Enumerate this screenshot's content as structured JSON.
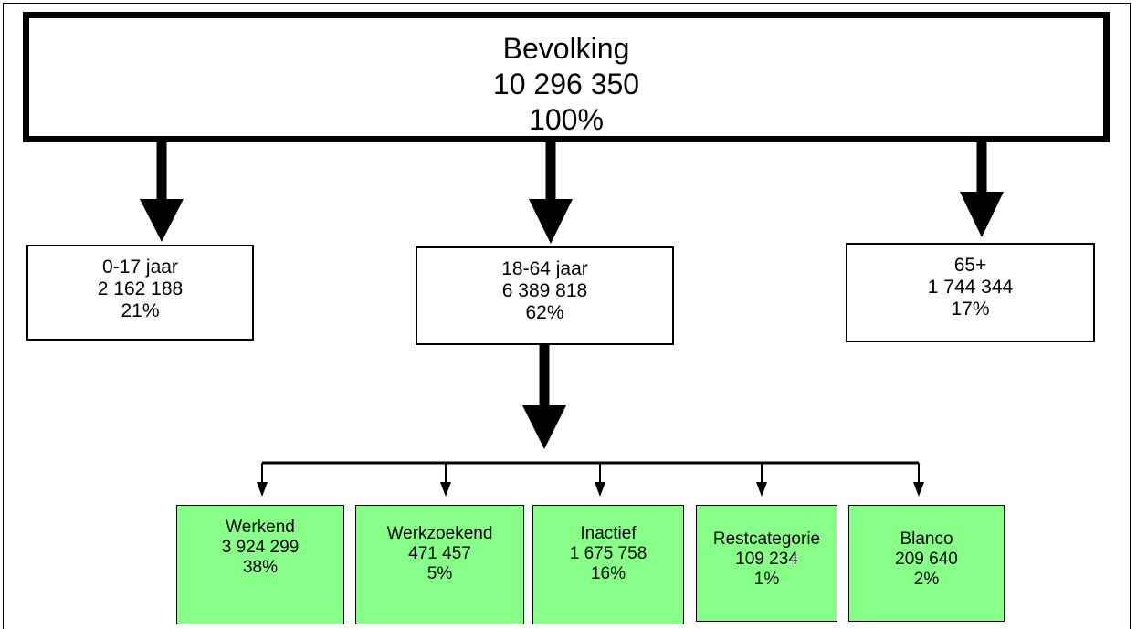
{
  "root": {
    "label": "Bevolking",
    "count": "10 296 350",
    "percent": "100%"
  },
  "age_groups": [
    {
      "label": "0-17 jaar",
      "count": "2 162 188",
      "percent": "21%"
    },
    {
      "label": "18-64 jaar",
      "count": "6 389 818",
      "percent": "62%"
    },
    {
      "label": "65+",
      "count": "1 744 344",
      "percent": "17%"
    }
  ],
  "status_groups": [
    {
      "label": "Werkend",
      "count": "3 924 299",
      "percent": "38%"
    },
    {
      "label": "Werkzoekend",
      "count": "471 457",
      "percent": "5%"
    },
    {
      "label": "Inactief",
      "count": "1 675 758",
      "percent": "16%"
    },
    {
      "label": "Restcategorie",
      "count": "109 234",
      "percent": "1%"
    },
    {
      "label": "Blanco",
      "count": "209 640",
      "percent": "2%"
    }
  ],
  "colors": {
    "status_fill": "#88ff88",
    "line": "#000000"
  }
}
